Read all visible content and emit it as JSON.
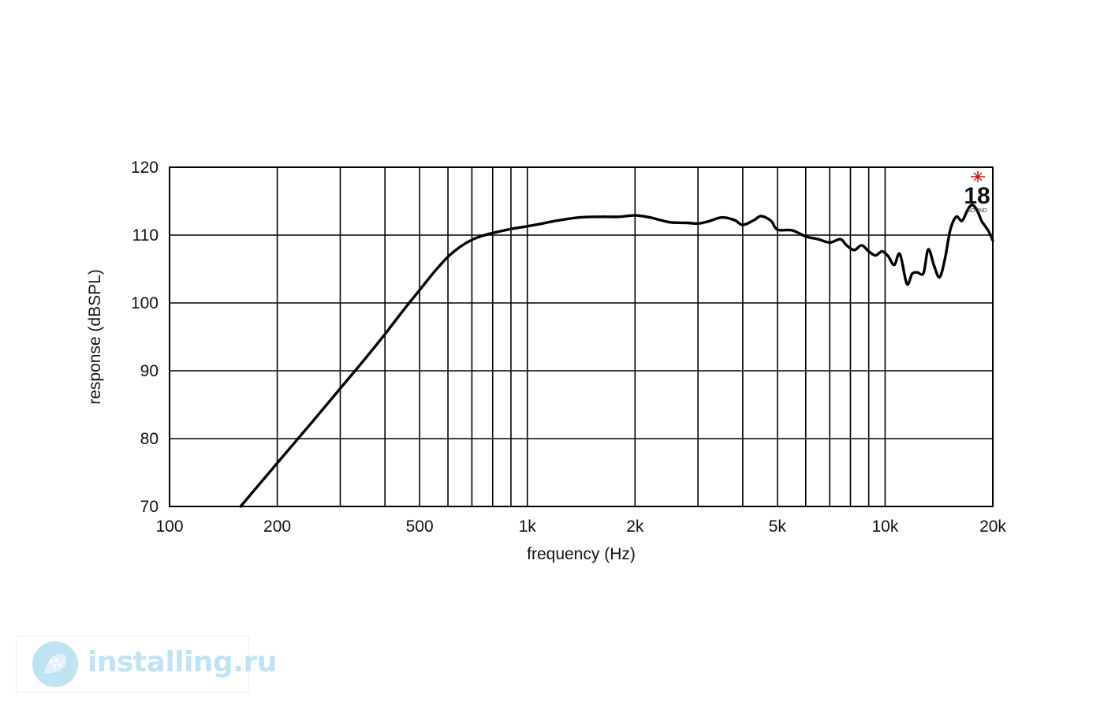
{
  "chart_data": {
    "type": "line",
    "xlabel": "frequency (Hz)",
    "ylabel": "response (dBSPL)",
    "x_scale": "log",
    "xlim": [
      100,
      20000
    ],
    "ylim": [
      70,
      120
    ],
    "grid": true,
    "x_ticks": [
      {
        "value": 100,
        "label": "100"
      },
      {
        "value": 200,
        "label": "200"
      },
      {
        "value": 500,
        "label": "500"
      },
      {
        "value": 1000,
        "label": "1k"
      },
      {
        "value": 2000,
        "label": "2k"
      },
      {
        "value": 5000,
        "label": "5k"
      },
      {
        "value": 10000,
        "label": "10k"
      },
      {
        "value": 20000,
        "label": "20k"
      }
    ],
    "x_gridlines": [
      200,
      300,
      400,
      500,
      600,
      700,
      800,
      900,
      1000,
      2000,
      3000,
      4000,
      5000,
      6000,
      7000,
      8000,
      9000,
      10000
    ],
    "y_ticks": [
      {
        "value": 70,
        "label": "70"
      },
      {
        "value": 80,
        "label": "80"
      },
      {
        "value": 90,
        "label": "90"
      },
      {
        "value": 100,
        "label": "100"
      },
      {
        "value": 110,
        "label": "110"
      },
      {
        "value": 120,
        "label": "120"
      }
    ],
    "y_gridlines": [
      80,
      90,
      100,
      110
    ],
    "series": [
      {
        "color": "#000000",
        "x": [
          158,
          200,
          250,
          300,
          350,
          400,
          450,
          500,
          550,
          600,
          650,
          700,
          750,
          800,
          900,
          1000,
          1100,
          1200,
          1400,
          1600,
          1800,
          2000,
          2200,
          2500,
          2800,
          3000,
          3200,
          3500,
          3800,
          4000,
          4300,
          4500,
          4800,
          5000,
          5500,
          6000,
          6500,
          7000,
          7500,
          7800,
          8200,
          8600,
          9000,
          9400,
          9800,
          10200,
          10600,
          11000,
          11500,
          11900,
          12300,
          12800,
          13200,
          13700,
          14200,
          14700,
          15200,
          15800,
          16400,
          17000,
          17400,
          17800,
          18200,
          18600,
          19000,
          19500,
          20000
        ],
        "y": [
          70.0,
          76.4,
          82.4,
          87.4,
          91.6,
          95.4,
          98.9,
          101.9,
          104.6,
          106.8,
          108.3,
          109.3,
          109.9,
          110.3,
          110.9,
          111.3,
          111.7,
          112.1,
          112.6,
          112.7,
          112.7,
          112.9,
          112.6,
          111.9,
          111.8,
          111.7,
          112.0,
          112.6,
          112.2,
          111.5,
          112.2,
          112.8,
          112.1,
          110.8,
          110.7,
          109.8,
          109.4,
          108.9,
          109.4,
          108.5,
          107.8,
          108.5,
          107.6,
          107.0,
          107.6,
          106.9,
          105.6,
          107.2,
          102.8,
          104.3,
          104.5,
          104.4,
          107.9,
          105.5,
          103.8,
          106.5,
          110.7,
          112.7,
          112.1,
          113.7,
          114.4,
          114.2,
          113.3,
          112.1,
          111.4,
          110.5,
          109.2
        ]
      }
    ]
  },
  "brand_badge": {
    "number": "18",
    "subtext": "SOUND",
    "accent_color": "#cc1111"
  },
  "watermark": {
    "text": "installing.ru",
    "color": "#bfe3f3"
  }
}
